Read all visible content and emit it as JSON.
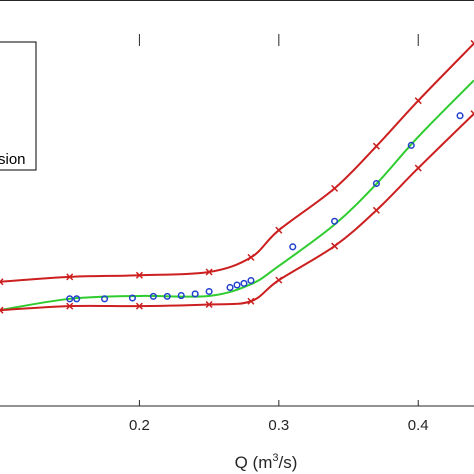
{
  "chart_data": {
    "type": "line",
    "xlabel": "Q (m",
    "xlabel_sup": "3",
    "xlabel_tail": "/s)",
    "xlim": [
      0.1,
      0.44
    ],
    "ylim": [
      0,
      1
    ],
    "x_ticks": [
      0.2,
      0.3,
      0.4
    ],
    "x_tick_labels": [
      "0.2",
      "0.3",
      "0.4"
    ],
    "grid": false,
    "legend": {
      "placement": "top-left",
      "visible_text": [
        "sion"
      ]
    },
    "series": [
      {
        "color": "#cc1f1f",
        "marker": "x",
        "x": [
          0.1,
          0.15,
          0.2,
          0.25,
          0.28,
          0.3,
          0.34,
          0.37,
          0.4,
          0.44
        ],
        "y": [
          0.306,
          0.318,
          0.322,
          0.33,
          0.366,
          0.433,
          0.536,
          0.64,
          0.752,
          0.893
        ]
      },
      {
        "color": "#2ecc2e",
        "marker": "none",
        "x": [
          0.1,
          0.15,
          0.2,
          0.25,
          0.28,
          0.3,
          0.34,
          0.37,
          0.4,
          0.44
        ],
        "y": [
          0.236,
          0.264,
          0.271,
          0.271,
          0.3,
          0.345,
          0.447,
          0.547,
          0.663,
          0.802
        ]
      },
      {
        "color": "#cc1f1f",
        "marker": "x",
        "x": [
          0.1,
          0.15,
          0.2,
          0.25,
          0.28,
          0.3,
          0.34,
          0.37,
          0.4,
          0.44
        ],
        "y": [
          0.236,
          0.246,
          0.246,
          0.25,
          0.258,
          0.31,
          0.394,
          0.482,
          0.586,
          0.72
        ]
      }
    ],
    "observations": [
      {
        "color": "#1f3fcc",
        "marker": "o",
        "x": [
          0.15,
          0.155,
          0.175,
          0.195,
          0.21,
          0.22,
          0.23,
          0.24,
          0.25,
          0.265,
          0.27,
          0.275,
          0.28,
          0.31,
          0.34,
          0.37,
          0.395,
          0.43
        ],
        "y": [
          0.264,
          0.264,
          0.264,
          0.266,
          0.27,
          0.27,
          0.272,
          0.276,
          0.282,
          0.292,
          0.298,
          0.302,
          0.309,
          0.392,
          0.455,
          0.548,
          0.642,
          0.715
        ]
      }
    ]
  }
}
